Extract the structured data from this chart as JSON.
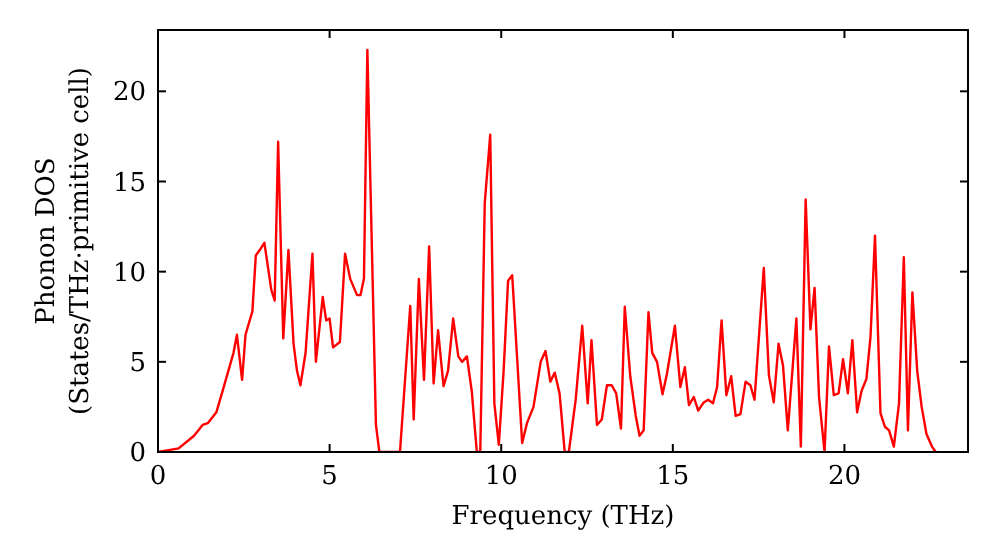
{
  "chart_data": {
    "type": "line",
    "xlabel": "Frequency (THz)",
    "ylabel": "Phonon DOS\n(States/THz·primitive cell)",
    "xlim": [
      0,
      23.6
    ],
    "ylim": [
      0,
      23.4
    ],
    "xticks": [
      0,
      5,
      10,
      15,
      20
    ],
    "yticks": [
      0,
      5,
      10,
      15,
      20
    ],
    "grid": false,
    "marker": "none",
    "line_style": "solid",
    "series": [
      {
        "color": "#ff0000",
        "x": [
          0,
          0.6,
          1.05,
          1.3,
          1.45,
          1.7,
          1.9,
          2.2,
          2.3,
          2.45,
          2.55,
          2.75,
          2.85,
          3.0,
          3.1,
          3.3,
          3.4,
          3.5,
          3.65,
          3.8,
          3.95,
          4.05,
          4.15,
          4.3,
          4.5,
          4.6,
          4.8,
          4.9,
          5.0,
          5.1,
          5.3,
          5.45,
          5.6,
          5.8,
          5.9,
          6.0,
          6.1,
          6.35,
          6.45,
          7.05,
          7.35,
          7.45,
          7.6,
          7.75,
          7.9,
          8.03,
          8.16,
          8.32,
          8.45,
          8.6,
          8.75,
          8.86,
          9.0,
          9.14,
          9.29,
          9.39,
          9.52,
          9.68,
          9.8,
          9.93,
          10.07,
          10.2,
          10.32,
          10.61,
          10.75,
          10.94,
          11.15,
          11.29,
          11.43,
          11.56,
          11.7,
          11.85,
          11.97,
          12.17,
          12.36,
          12.52,
          12.63,
          12.79,
          12.93,
          13.08,
          13.22,
          13.35,
          13.49,
          13.6,
          13.76,
          13.92,
          14.03,
          14.15,
          14.29,
          14.4,
          14.54,
          14.7,
          14.83,
          15.06,
          15.22,
          15.35,
          15.47,
          15.61,
          15.74,
          15.9,
          16.03,
          16.17,
          16.29,
          16.42,
          16.56,
          16.7,
          16.83,
          16.97,
          17.12,
          17.26,
          17.38,
          17.65,
          17.8,
          17.94,
          18.08,
          18.21,
          18.35,
          18.6,
          18.73,
          18.87,
          19.01,
          19.13,
          19.26,
          19.42,
          19.55,
          19.69,
          19.83,
          19.96,
          20.1,
          20.23,
          20.37,
          20.5,
          20.64,
          20.76,
          20.89,
          21.05,
          21.18,
          21.3,
          21.44,
          21.59,
          21.73,
          21.85,
          21.98,
          22.12,
          22.25,
          22.39,
          22.55,
          22.66
        ],
        "values": [
          0,
          0.2,
          0.9,
          1.5,
          1.6,
          2.2,
          3.5,
          5.5,
          6.5,
          4,
          6.5,
          7.8,
          10.9,
          11.3,
          11.6,
          9,
          8.4,
          17.2,
          6.3,
          11.2,
          6,
          4.5,
          3.7,
          5.5,
          11,
          5,
          8.6,
          7.3,
          7.4,
          5.8,
          6.1,
          11,
          9.6,
          8.7,
          8.7,
          9.6,
          22.3,
          1.5,
          0,
          0,
          8.1,
          1.8,
          9.6,
          4,
          11.4,
          3.8,
          6.75,
          3.65,
          4.5,
          7.4,
          5.3,
          5,
          5.3,
          3.4,
          0,
          0,
          13.8,
          17.6,
          2.7,
          0.4,
          4.5,
          9.5,
          9.8,
          0.5,
          1.6,
          2.5,
          5,
          5.6,
          3.9,
          4.4,
          3.25,
          0,
          0,
          2.9,
          7,
          2.7,
          6.2,
          1.5,
          1.8,
          3.7,
          3.7,
          3.25,
          1.3,
          8.05,
          4.2,
          2,
          0.9,
          1.2,
          7.75,
          5.5,
          5,
          3.2,
          4.35,
          7,
          3.6,
          4.7,
          2.6,
          3.05,
          2.3,
          2.75,
          2.9,
          2.7,
          3.6,
          7.3,
          3.15,
          4.2,
          2,
          2.1,
          3.9,
          3.7,
          2.9,
          10.2,
          4.25,
          2.75,
          6,
          4.8,
          1.2,
          7.4,
          0.3,
          14,
          6.8,
          9.1,
          3.05,
          0,
          5.85,
          3.15,
          3.25,
          5.15,
          3.25,
          6.2,
          2.2,
          3.4,
          4.05,
          6.4,
          12,
          2.15,
          1.4,
          1.2,
          0.3,
          2.7,
          10.8,
          1.2,
          8.85,
          4.5,
          2.5,
          1,
          0.3,
          0
        ]
      }
    ]
  }
}
